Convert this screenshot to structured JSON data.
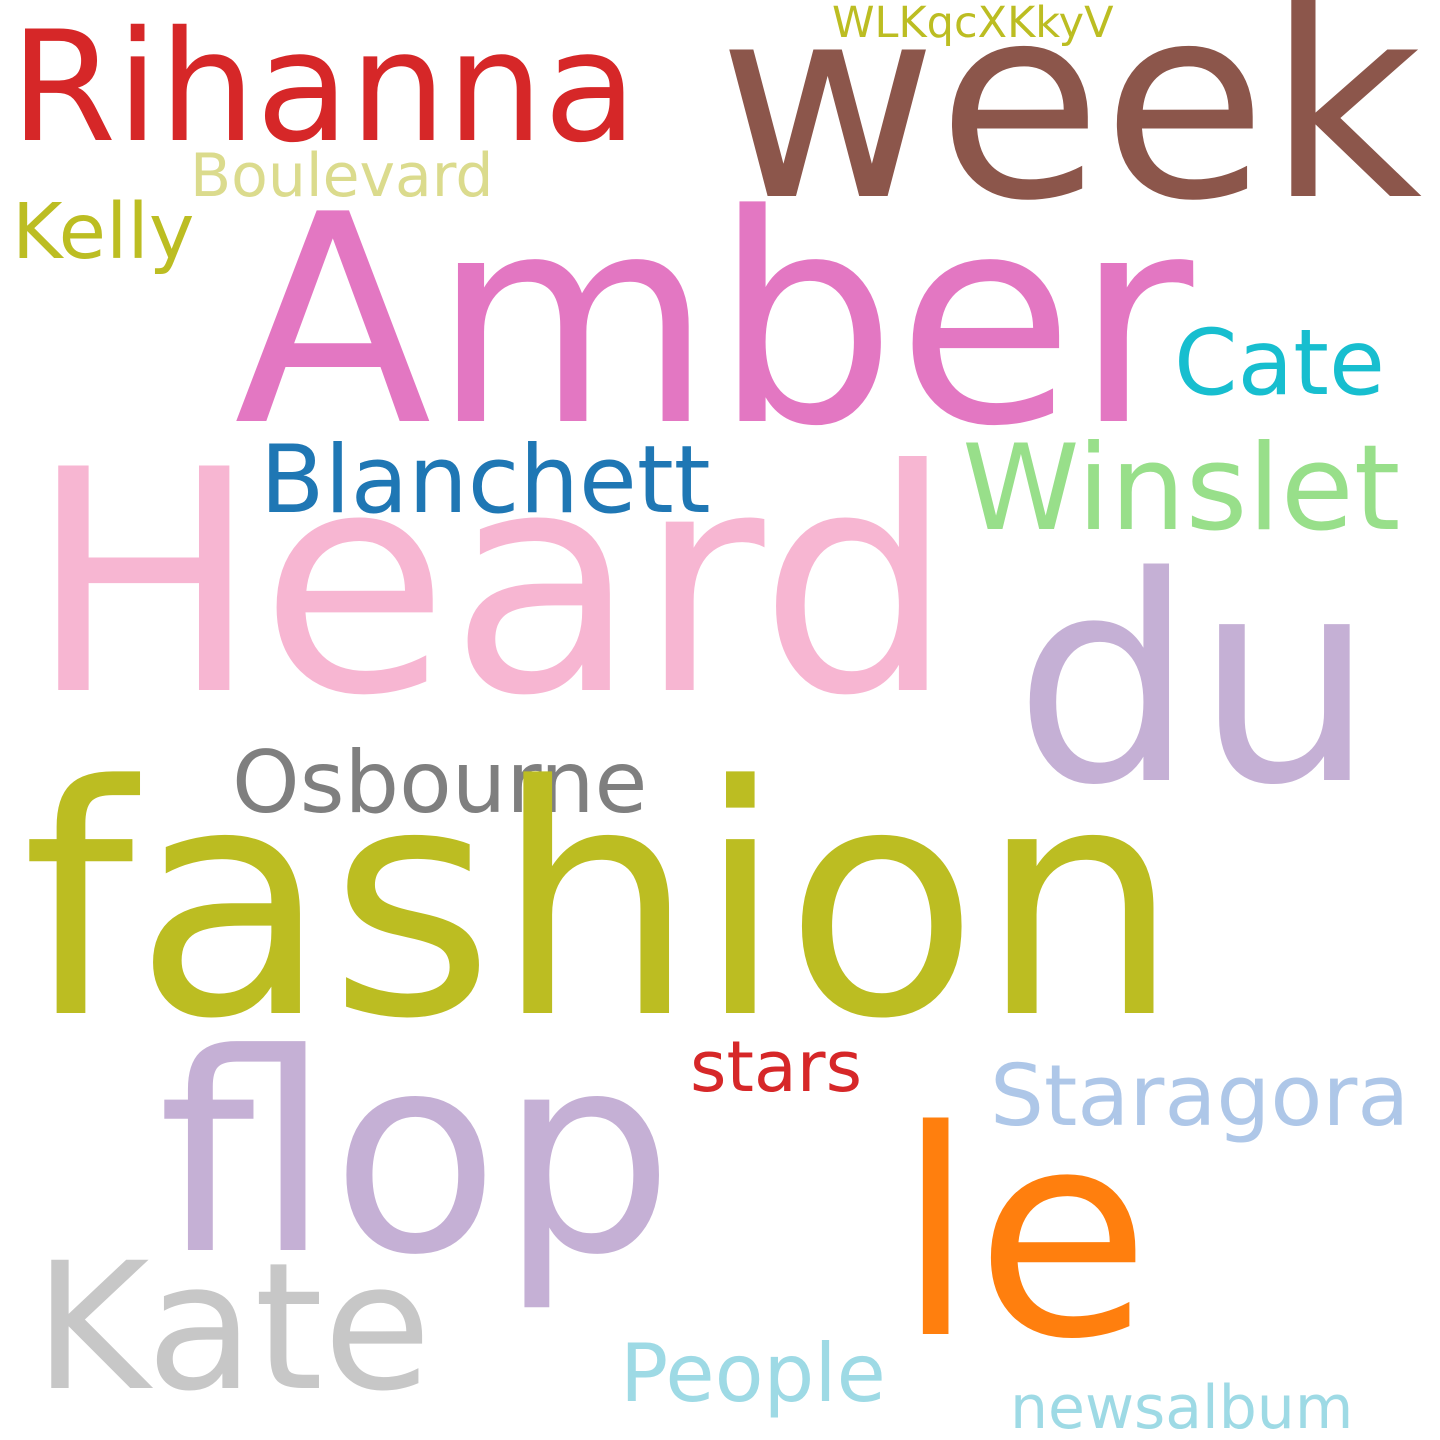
{
  "words": [
    {
      "text": "Rihanna",
      "color": "#d62728"
    },
    {
      "text": "week",
      "color": "#8c564b"
    },
    {
      "text": "WLKqcXKkyV",
      "color": "#bcbd22"
    },
    {
      "text": "Boulevard",
      "color": "#dbdb8d"
    },
    {
      "text": "Kelly",
      "color": "#bcbd22"
    },
    {
      "text": "Amber",
      "color": "#e377c2"
    },
    {
      "text": "Cate",
      "color": "#17becf"
    },
    {
      "text": "Blanchett",
      "color": "#1f77b4"
    },
    {
      "text": "Winslet",
      "color": "#98df8a"
    },
    {
      "text": "Heard",
      "color": "#f7b6d2"
    },
    {
      "text": "du",
      "color": "#c5b0d5"
    },
    {
      "text": "Osbourne",
      "color": "#7f7f7f"
    },
    {
      "text": "fashion",
      "color": "#bcbd22"
    },
    {
      "text": "stars",
      "color": "#d62728"
    },
    {
      "text": "Staragora",
      "color": "#aec7e8"
    },
    {
      "text": "flop",
      "color": "#c5b0d5"
    },
    {
      "text": "le",
      "color": "#ff7f0e"
    },
    {
      "text": "Kate",
      "color": "#c7c7c7"
    },
    {
      "text": "People",
      "color": "#9edae5"
    },
    {
      "text": "newsalbum",
      "color": "#9edae5"
    }
  ]
}
